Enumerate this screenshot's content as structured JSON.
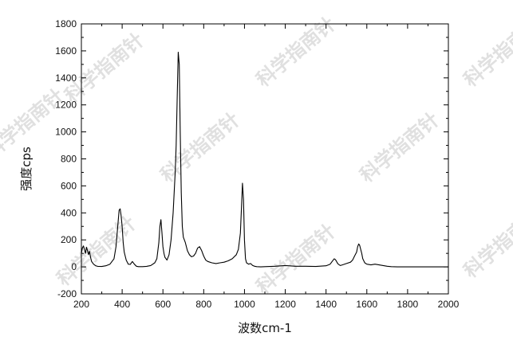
{
  "chart_data": {
    "type": "line",
    "title": "",
    "xlabel": "波数cm-1",
    "ylabel": "强度cps",
    "xlim": [
      200,
      2000
    ],
    "ylim": [
      -200,
      1800
    ],
    "x_ticks": [
      200,
      400,
      600,
      800,
      1000,
      1200,
      1400,
      1600,
      1800,
      2000
    ],
    "y_ticks": [
      -200,
      0,
      200,
      400,
      600,
      800,
      1000,
      1200,
      1400,
      1600,
      1800
    ],
    "x_tick_labels": [
      "200",
      "400",
      "600",
      "800",
      "1000",
      "1200",
      "1400",
      "1600",
      "1800",
      "2000"
    ],
    "y_tick_labels": [
      "-200",
      "0",
      "200",
      "400",
      "600",
      "800",
      "1000",
      "1200",
      "1400",
      "1600",
      "1800"
    ],
    "grid": false,
    "legend": "none",
    "line_color": "#000000",
    "series": [
      {
        "x": [
          200,
          205,
          210,
          215,
          220,
          225,
          230,
          235,
          240,
          245,
          250,
          260,
          270,
          280,
          300,
          320,
          340,
          360,
          370,
          380,
          385,
          390,
          395,
          400,
          405,
          410,
          420,
          430,
          440,
          450,
          460,
          470,
          480,
          500,
          520,
          540,
          560,
          570,
          580,
          585,
          590,
          595,
          600,
          605,
          610,
          620,
          630,
          640,
          650,
          660,
          665,
          670,
          675,
          680,
          685,
          690,
          695,
          700,
          710,
          720,
          730,
          740,
          750,
          760,
          770,
          780,
          790,
          800,
          810,
          820,
          840,
          860,
          880,
          900,
          920,
          940,
          960,
          970,
          980,
          985,
          990,
          995,
          1000,
          1005,
          1010,
          1020,
          1030,
          1040,
          1050,
          1060,
          1080,
          1100,
          1150,
          1200,
          1250,
          1300,
          1350,
          1400,
          1420,
          1430,
          1440,
          1445,
          1450,
          1455,
          1460,
          1470,
          1480,
          1500,
          1520,
          1530,
          1540,
          1550,
          1555,
          1560,
          1565,
          1570,
          1575,
          1580,
          1590,
          1600,
          1620,
          1640,
          1660,
          1680,
          1700,
          1720,
          1750,
          1800,
          1850,
          1900,
          1950,
          2000
        ],
        "y": [
          100,
          140,
          155,
          130,
          100,
          145,
          120,
          90,
          115,
          70,
          40,
          20,
          8,
          4,
          3,
          8,
          20,
          60,
          150,
          330,
          420,
          430,
          380,
          300,
          180,
          110,
          50,
          20,
          18,
          40,
          20,
          5,
          2,
          2,
          4,
          10,
          30,
          60,
          180,
          300,
          350,
          260,
          150,
          100,
          70,
          50,
          90,
          200,
          400,
          700,
          900,
          1250,
          1590,
          1500,
          1000,
          550,
          300,
          220,
          180,
          120,
          90,
          75,
          80,
          100,
          140,
          150,
          120,
          80,
          50,
          40,
          30,
          25,
          30,
          35,
          45,
          60,
          90,
          130,
          250,
          430,
          620,
          500,
          200,
          60,
          30,
          20,
          25,
          10,
          5,
          2,
          0,
          2,
          5,
          10,
          5,
          5,
          3,
          8,
          20,
          40,
          60,
          55,
          45,
          30,
          20,
          10,
          15,
          25,
          35,
          50,
          80,
          110,
          150,
          170,
          160,
          130,
          100,
          60,
          30,
          20,
          15,
          20,
          15,
          10,
          5,
          2,
          0,
          0,
          0,
          0,
          0,
          0
        ]
      }
    ]
  },
  "watermark": {
    "text": "科学指南针"
  }
}
